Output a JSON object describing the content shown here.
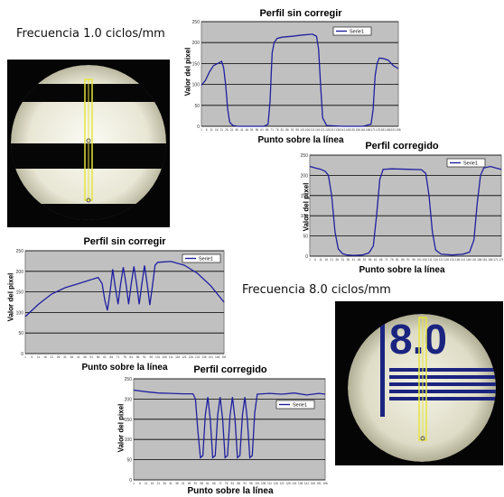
{
  "labels": {
    "freq_low": "Frecuencia 1.0 ciclos/mm",
    "freq_high": "Frecuencia 8.0 ciclos/mm",
    "chart1_title": "Perfil sin corregir",
    "chart2_title": "Perfil corregido",
    "chart3_title": "Perfil sin corregir",
    "chart4_title": "Perfil corregido",
    "xlabel": "Punto sobre la línea",
    "ylabel": "Valor del pixel",
    "legend": "Serie1"
  },
  "photo_high_digits": "8.0",
  "colors": {
    "plot_bg": "#c0c0c0",
    "line": "#1f1fa0",
    "grid": "#000000",
    "photo_line": "#e6e63c"
  },
  "chart_data": [
    {
      "type": "line",
      "title": "Perfil sin corregir",
      "xlabel": "Punto sobre la línea",
      "ylabel": "Valor del pixel",
      "ylim": [
        0,
        250
      ],
      "grid": true,
      "legend": "top-right",
      "series": [
        {
          "name": "Serie1",
          "points": [
            [
              0,
              98
            ],
            [
              4,
              110
            ],
            [
              8,
              130
            ],
            [
              12,
              145
            ],
            [
              16,
              150
            ],
            [
              20,
              155
            ],
            [
              22,
              140
            ],
            [
              24,
              100
            ],
            [
              26,
              40
            ],
            [
              28,
              10
            ],
            [
              31,
              2
            ],
            [
              36,
              0
            ],
            [
              50,
              0
            ],
            [
              62,
              0
            ],
            [
              66,
              5
            ],
            [
              68,
              60
            ],
            [
              70,
              175
            ],
            [
              72,
              200
            ],
            [
              75,
              210
            ],
            [
              80,
              213
            ],
            [
              90,
              215
            ],
            [
              100,
              218
            ],
            [
              110,
              220
            ],
            [
              114,
              215
            ],
            [
              116,
              185
            ],
            [
              118,
              100
            ],
            [
              120,
              20
            ],
            [
              124,
              2
            ],
            [
              140,
              0
            ],
            [
              160,
              0
            ],
            [
              168,
              5
            ],
            [
              170,
              40
            ],
            [
              172,
              120
            ],
            [
              174,
              150
            ],
            [
              176,
              163
            ],
            [
              180,
              162
            ],
            [
              185,
              158
            ],
            [
              190,
              145
            ],
            [
              195,
              138
            ]
          ]
        }
      ],
      "xlim": [
        0,
        195
      ]
    },
    {
      "type": "line",
      "title": "Perfil corregido",
      "xlabel": "Punto sobre la línea",
      "ylabel": "Valor del pixel",
      "ylim": [
        0,
        250
      ],
      "grid": true,
      "legend": "top-right",
      "series": [
        {
          "name": "Serie1",
          "points": [
            [
              0,
              222
            ],
            [
              5,
              218
            ],
            [
              10,
              215
            ],
            [
              14,
              210
            ],
            [
              17,
              200
            ],
            [
              20,
              150
            ],
            [
              23,
              60
            ],
            [
              26,
              18
            ],
            [
              30,
              6
            ],
            [
              34,
              3
            ],
            [
              40,
              2
            ],
            [
              48,
              3
            ],
            [
              54,
              8
            ],
            [
              58,
              25
            ],
            [
              61,
              100
            ],
            [
              64,
              190
            ],
            [
              67,
              215
            ],
            [
              75,
              216
            ],
            [
              90,
              215
            ],
            [
              102,
              214
            ],
            [
              106,
              205
            ],
            [
              109,
              150
            ],
            [
              112,
              60
            ],
            [
              115,
              15
            ],
            [
              120,
              5
            ],
            [
              130,
              3
            ],
            [
              140,
              5
            ],
            [
              146,
              10
            ],
            [
              150,
              40
            ],
            [
              153,
              130
            ],
            [
              156,
              200
            ],
            [
              159,
              218
            ],
            [
              165,
              222
            ],
            [
              170,
              218
            ],
            [
              175,
              215
            ]
          ]
        }
      ],
      "xlim": [
        0,
        175
      ]
    },
    {
      "type": "line",
      "title": "Perfil sin corregir",
      "xlabel": "Punto sobre la línea",
      "ylabel": "Valor del pixel",
      "ylim": [
        0,
        250
      ],
      "grid": true,
      "legend": "top-right",
      "series": [
        {
          "name": "Serie1",
          "points": [
            [
              0,
              90
            ],
            [
              10,
              120
            ],
            [
              20,
              145
            ],
            [
              30,
              160
            ],
            [
              40,
              170
            ],
            [
              50,
              180
            ],
            [
              55,
              185
            ],
            [
              58,
              170
            ],
            [
              60,
              130
            ],
            [
              62,
              105
            ],
            [
              64,
              150
            ],
            [
              66,
              205
            ],
            [
              68,
              160
            ],
            [
              70,
              120
            ],
            [
              72,
              170
            ],
            [
              74,
              210
            ],
            [
              76,
              170
            ],
            [
              78,
              120
            ],
            [
              80,
              170
            ],
            [
              82,
              212
            ],
            [
              84,
              170
            ],
            [
              86,
              120
            ],
            [
              88,
              170
            ],
            [
              90,
              214
            ],
            [
              92,
              170
            ],
            [
              94,
              118
            ],
            [
              96,
              165
            ],
            [
              98,
              215
            ],
            [
              100,
              222
            ],
            [
              110,
              224
            ],
            [
              120,
              215
            ],
            [
              130,
              195
            ],
            [
              140,
              165
            ],
            [
              150,
              125
            ]
          ]
        }
      ],
      "xlim": [
        0,
        150
      ]
    },
    {
      "type": "line",
      "title": "Perfil corregido",
      "xlabel": "Punto sobre la línea",
      "ylabel": "Valor del pixel",
      "ylim": [
        0,
        250
      ],
      "grid": true,
      "legend": "top-right",
      "series": [
        {
          "name": "Serie1",
          "points": [
            [
              0,
              222
            ],
            [
              10,
              218
            ],
            [
              20,
              215
            ],
            [
              30,
              214
            ],
            [
              40,
              213
            ],
            [
              48,
              213
            ],
            [
              50,
              200
            ],
            [
              52,
              120
            ],
            [
              54,
              55
            ],
            [
              56,
              60
            ],
            [
              58,
              160
            ],
            [
              60,
              205
            ],
            [
              62,
              150
            ],
            [
              64,
              55
            ],
            [
              66,
              60
            ],
            [
              68,
              160
            ],
            [
              70,
              205
            ],
            [
              72,
              150
            ],
            [
              74,
              55
            ],
            [
              76,
              60
            ],
            [
              78,
              160
            ],
            [
              80,
              205
            ],
            [
              82,
              150
            ],
            [
              84,
              55
            ],
            [
              86,
              60
            ],
            [
              88,
              160
            ],
            [
              90,
              205
            ],
            [
              92,
              150
            ],
            [
              94,
              55
            ],
            [
              96,
              60
            ],
            [
              98,
              165
            ],
            [
              100,
              212
            ],
            [
              110,
              214
            ],
            [
              120,
              212
            ],
            [
              130,
              215
            ],
            [
              140,
              210
            ],
            [
              150,
              214
            ],
            [
              155,
              212
            ]
          ]
        }
      ],
      "xlim": [
        0,
        155
      ]
    }
  ]
}
